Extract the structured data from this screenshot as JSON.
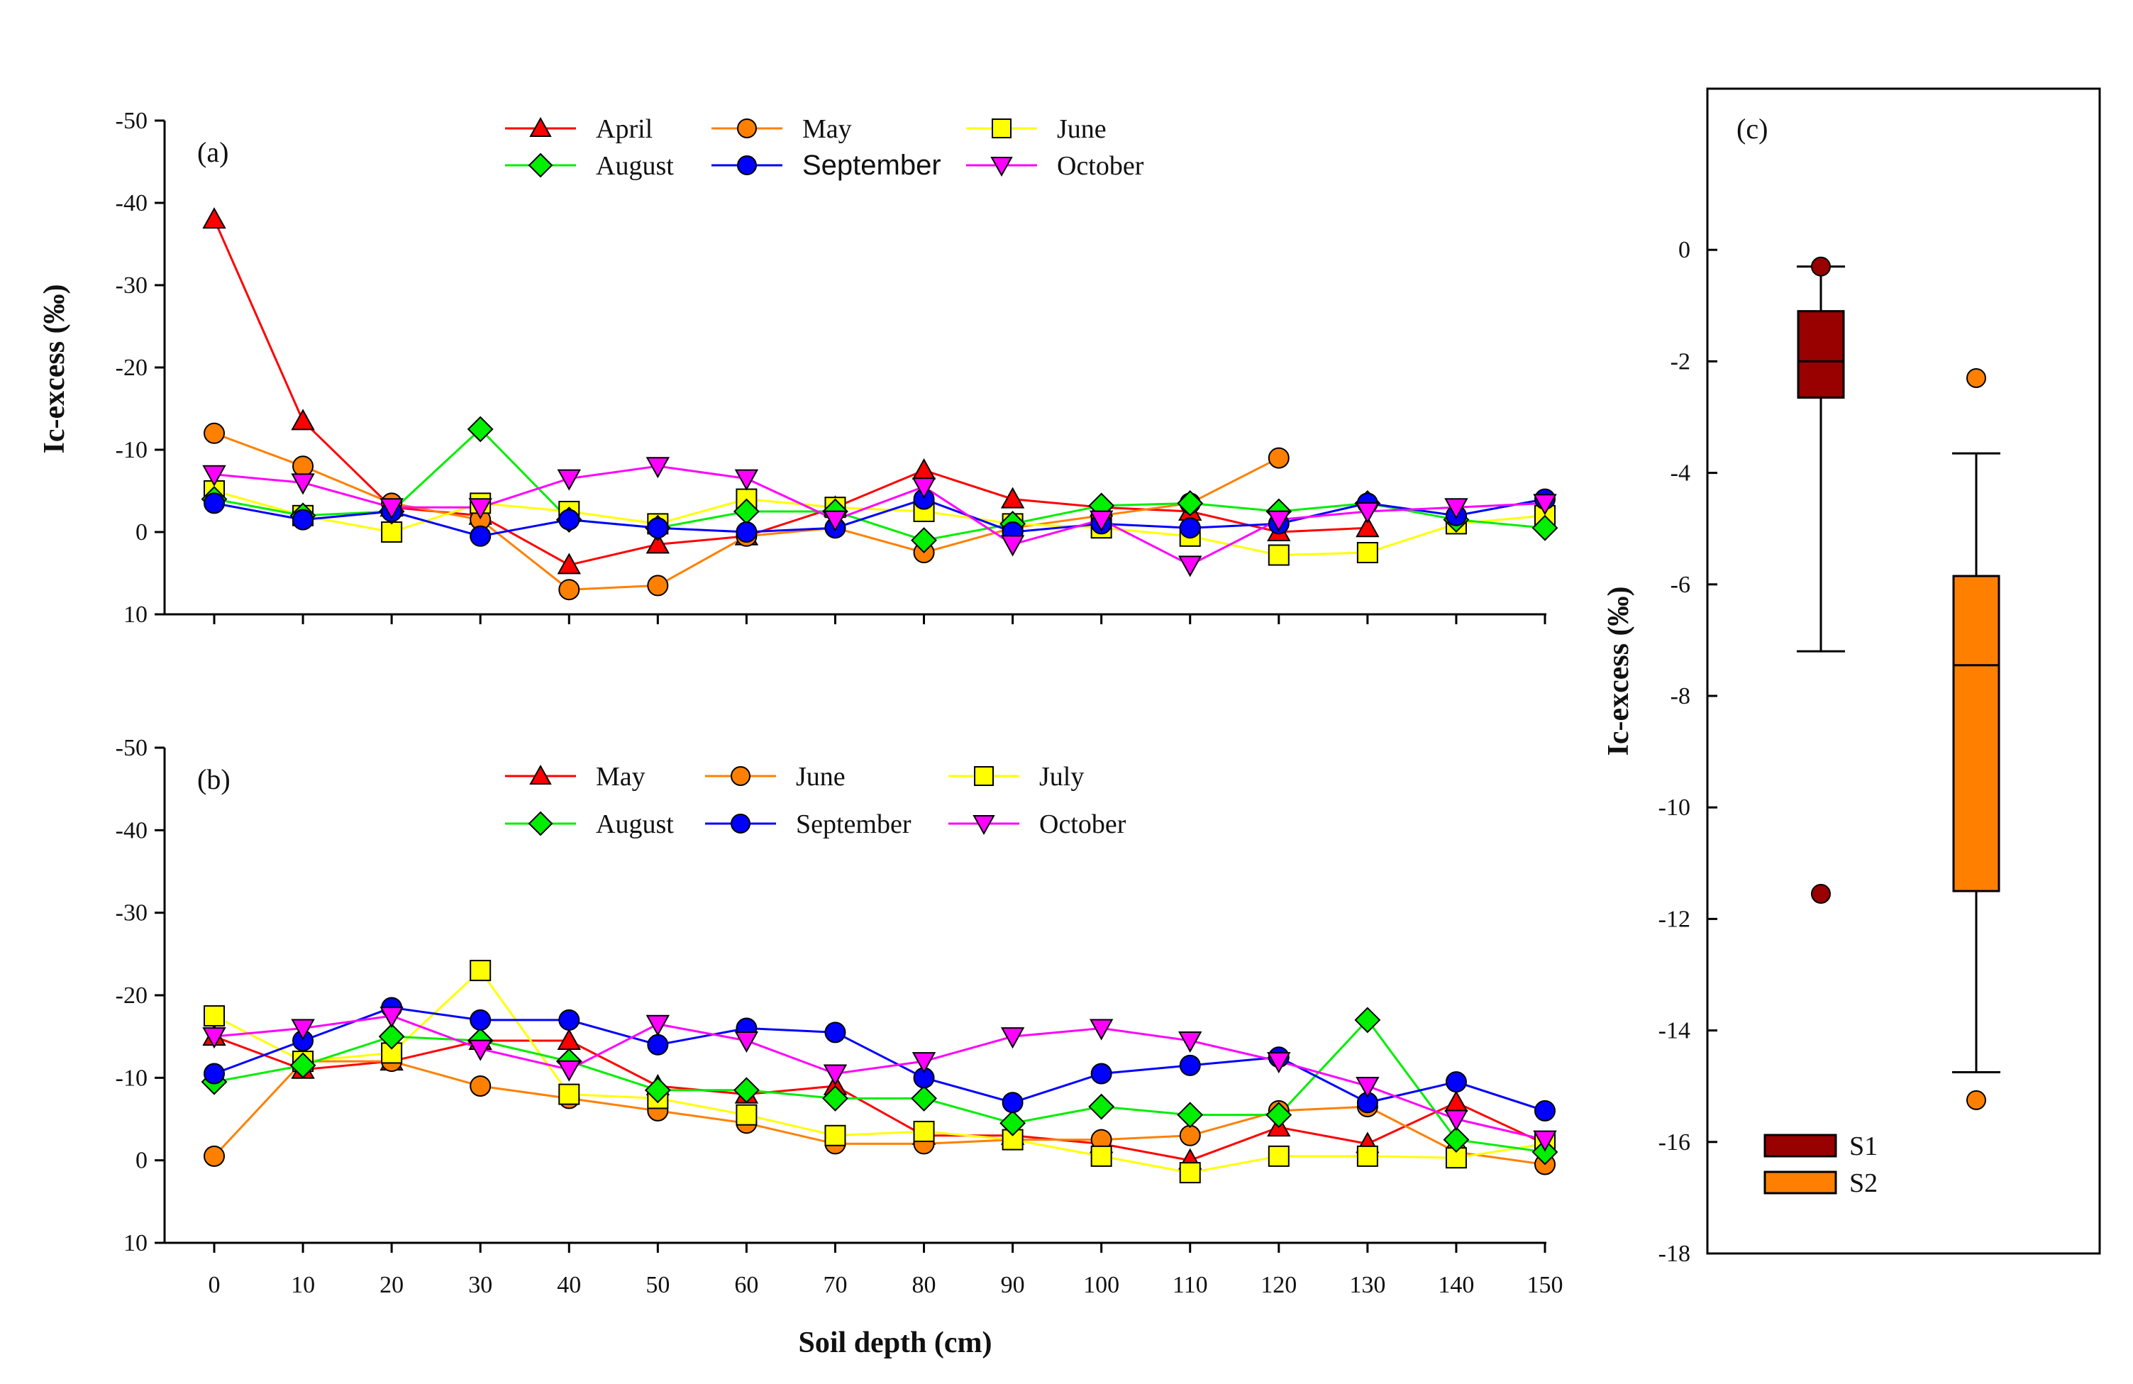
{
  "chart_data": [
    {
      "type": "line",
      "panel": "(a)",
      "ylabel": "Ic-excess (‰)",
      "xlabel": "",
      "ylim": [
        -50,
        10
      ],
      "y_inverted": true,
      "yticks": [
        -50,
        -40,
        -30,
        -20,
        -10,
        0,
        10
      ],
      "x_ticks": [
        0,
        10,
        20,
        30,
        40,
        50,
        60,
        70,
        80,
        90,
        100,
        110,
        120,
        130,
        140,
        150
      ],
      "legend_position": "top-center",
      "series": [
        {
          "name": "April",
          "color": "#ff0000",
          "marker": "triangle-up",
          "x": [
            0,
            10,
            20,
            30,
            40,
            50,
            60,
            70,
            80,
            90,
            100,
            110,
            120,
            130
          ],
          "values": [
            -38,
            -13.5,
            -3,
            -2,
            4,
            1.5,
            0.5,
            -3,
            -7.5,
            -4,
            -3,
            -2.5,
            0,
            -0.5
          ]
        },
        {
          "name": "May",
          "color": "#ff8000",
          "marker": "circle",
          "x": [
            0,
            10,
            20,
            30,
            40,
            50,
            60,
            70,
            80,
            90,
            100,
            110,
            120
          ],
          "values": [
            -12,
            -8,
            -3.5,
            -1.5,
            7,
            6.5,
            0.5,
            -0.5,
            2.5,
            -0.5,
            -2,
            -3.5,
            -9
          ]
        },
        {
          "name": "June",
          "color": "#ffff00",
          "marker": "square",
          "x": [
            0,
            10,
            20,
            30,
            40,
            50,
            60,
            70,
            80,
            90,
            100,
            110,
            120,
            130,
            140,
            150
          ],
          "values": [
            -5,
            -2,
            0,
            -3.5,
            -2.5,
            -1,
            -4,
            -3,
            -2.5,
            -1,
            -0.5,
            0.5,
            2.8,
            2.5,
            -1,
            -2
          ]
        },
        {
          "name": "August",
          "color": "#00ee00",
          "marker": "diamond",
          "x": [
            0,
            10,
            20,
            30,
            40,
            50,
            60,
            70,
            80,
            90,
            100,
            110,
            120,
            130,
            140,
            150
          ],
          "values": [
            -4,
            -2,
            -2.5,
            -12.5,
            -1.5,
            -0.5,
            -2.5,
            -2.5,
            1,
            -1,
            -3.2,
            -3.5,
            -2.5,
            -3.5,
            -1.5,
            -0.5
          ]
        },
        {
          "name": "September",
          "color": "#0000ff",
          "marker": "circle",
          "x": [
            0,
            10,
            20,
            30,
            40,
            50,
            60,
            70,
            80,
            90,
            100,
            110,
            120,
            130,
            140,
            150
          ],
          "values": [
            -3.5,
            -1.5,
            -2.5,
            0.5,
            -1.5,
            -0.5,
            0,
            -0.5,
            -4,
            0,
            -1,
            -0.5,
            -1,
            -3.5,
            -2,
            -4
          ]
        },
        {
          "name": "October",
          "color": "#ff00ff",
          "marker": "triangle-down",
          "x": [
            0,
            10,
            20,
            30,
            40,
            50,
            60,
            70,
            80,
            90,
            100,
            110,
            120,
            130,
            140,
            150
          ],
          "values": [
            -7,
            -6,
            -3,
            -3,
            -6.5,
            -8,
            -6.5,
            -1.5,
            -5.5,
            1.5,
            -1.5,
            4,
            -1.5,
            -2.5,
            -3,
            -3.5
          ]
        }
      ]
    },
    {
      "type": "line",
      "panel": "(b)",
      "ylabel": "",
      "xlabel": "Soil depth (cm)",
      "ylim": [
        -50,
        10
      ],
      "y_inverted": true,
      "yticks": [
        -50,
        -40,
        -30,
        -20,
        -10,
        0,
        10
      ],
      "x_ticks": [
        0,
        10,
        20,
        30,
        40,
        50,
        60,
        70,
        80,
        90,
        100,
        110,
        120,
        130,
        140,
        150
      ],
      "legend_position": "top-center",
      "series": [
        {
          "name": "May",
          "color": "#ff0000",
          "marker": "triangle-up",
          "x": [
            0,
            10,
            20,
            30,
            40,
            50,
            60,
            70,
            80,
            90,
            100,
            110,
            120,
            130,
            140,
            150
          ],
          "values": [
            -15,
            -11,
            -12,
            -14.5,
            -14.5,
            -9,
            -8,
            -9,
            -3,
            -3,
            -2,
            0,
            -4,
            -2,
            -7,
            -2
          ]
        },
        {
          "name": "June",
          "color": "#ff8000",
          "marker": "circle",
          "x": [
            0,
            10,
            20,
            30,
            40,
            50,
            60,
            70,
            80,
            90,
            100,
            110,
            120,
            130,
            140,
            150
          ],
          "values": [
            -0.5,
            -12,
            -12,
            -9,
            -7.5,
            -6,
            -4.5,
            -2,
            -2,
            -2.5,
            -2.5,
            -3,
            -6,
            -6.5,
            -1,
            0.5
          ]
        },
        {
          "name": "July",
          "color": "#ffff00",
          "marker": "square",
          "x": [
            0,
            10,
            20,
            30,
            40,
            50,
            60,
            70,
            80,
            90,
            100,
            110,
            120,
            130,
            140,
            150
          ],
          "values": [
            -17.5,
            -12,
            -13,
            -23,
            -8,
            -7.5,
            -5.5,
            -3,
            -3.5,
            -2.5,
            -0.5,
            1.5,
            -0.5,
            -0.5,
            -0.3,
            -2
          ]
        },
        {
          "name": "August",
          "color": "#00ee00",
          "marker": "diamond",
          "x": [
            0,
            10,
            20,
            30,
            40,
            50,
            60,
            70,
            80,
            90,
            100,
            110,
            120,
            130,
            140,
            150
          ],
          "values": [
            -9.5,
            -11.5,
            -15,
            -14.5,
            -12,
            -8.5,
            -8.5,
            -7.5,
            -7.5,
            -4.5,
            -6.5,
            -5.5,
            -5.5,
            -17,
            -2.5,
            -1
          ]
        },
        {
          "name": "September",
          "color": "#0000ff",
          "marker": "circle",
          "x": [
            0,
            10,
            20,
            30,
            40,
            50,
            60,
            70,
            80,
            90,
            100,
            110,
            120,
            130,
            140,
            150
          ],
          "values": [
            -10.5,
            -14.5,
            -18.5,
            -17,
            -17,
            -14,
            -16,
            -15.5,
            -10,
            -7,
            -10.5,
            -11.5,
            -12.5,
            -7,
            -9.5,
            -6
          ]
        },
        {
          "name": "October",
          "color": "#ff00ff",
          "marker": "triangle-down",
          "x": [
            0,
            10,
            20,
            30,
            40,
            50,
            60,
            70,
            80,
            90,
            100,
            110,
            120,
            130,
            140,
            150
          ],
          "values": [
            -15,
            -16,
            -17.5,
            -13.5,
            -11,
            -16.5,
            -14.5,
            -10.5,
            -12,
            -15,
            -16,
            -14.5,
            -12,
            -9,
            -5,
            -2.5
          ]
        }
      ]
    },
    {
      "type": "box",
      "panel": "(c)",
      "ylabel": "Ic-excess (‰)",
      "ylim": [
        -18,
        2
      ],
      "yticks": [
        0,
        -2,
        -4,
        -6,
        -8,
        -10,
        -12,
        -14,
        -16,
        -18
      ],
      "legend_position": "bottom-left",
      "boxes": [
        {
          "name": "S1",
          "color": "#990000",
          "whisker_high": -0.3,
          "q3": -1.1,
          "median": -2.0,
          "q1": -2.65,
          "whisker_low": -7.2,
          "outliers": [
            -0.3,
            -11.55
          ]
        },
        {
          "name": "S2",
          "color": "#ff8000",
          "whisker_high": -3.65,
          "q3": -5.85,
          "median": -7.45,
          "q1": -11.5,
          "whisker_low": -14.75,
          "outliers": [
            -2.3,
            -15.25
          ]
        }
      ]
    }
  ]
}
